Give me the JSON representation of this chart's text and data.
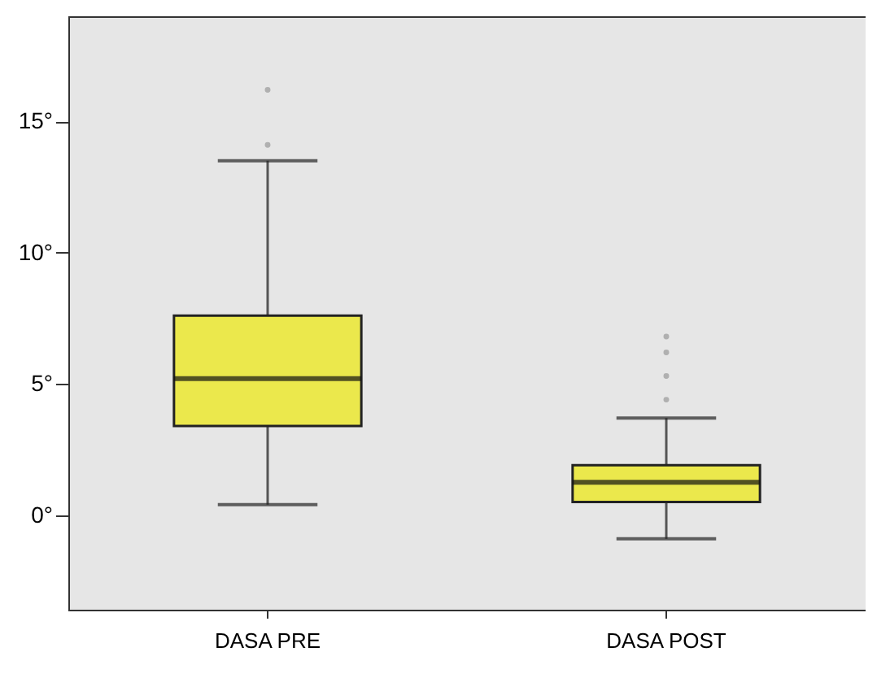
{
  "chart_data": {
    "type": "box",
    "categories": [
      "DASA PRE",
      "DASA POST"
    ],
    "boxes": [
      {
        "low": 0.4,
        "q1": 3.4,
        "median": 5.2,
        "q3": 7.6,
        "high": 13.5,
        "outliers": [
          14.1,
          16.2
        ]
      },
      {
        "low": -0.9,
        "q1": 0.5,
        "median": 1.25,
        "q3": 1.9,
        "high": 3.7,
        "outliers": [
          4.4,
          5.3,
          6.2,
          6.8
        ]
      }
    ],
    "color": "#ebe84c",
    "ylim": [
      -3.6,
      19
    ],
    "yticks": [
      {
        "value": 0,
        "label": "0°"
      },
      {
        "value": 5,
        "label": "5°"
      },
      {
        "value": 10,
        "label": "10°"
      },
      {
        "value": 15,
        "label": "15°"
      }
    ],
    "grid": false
  }
}
